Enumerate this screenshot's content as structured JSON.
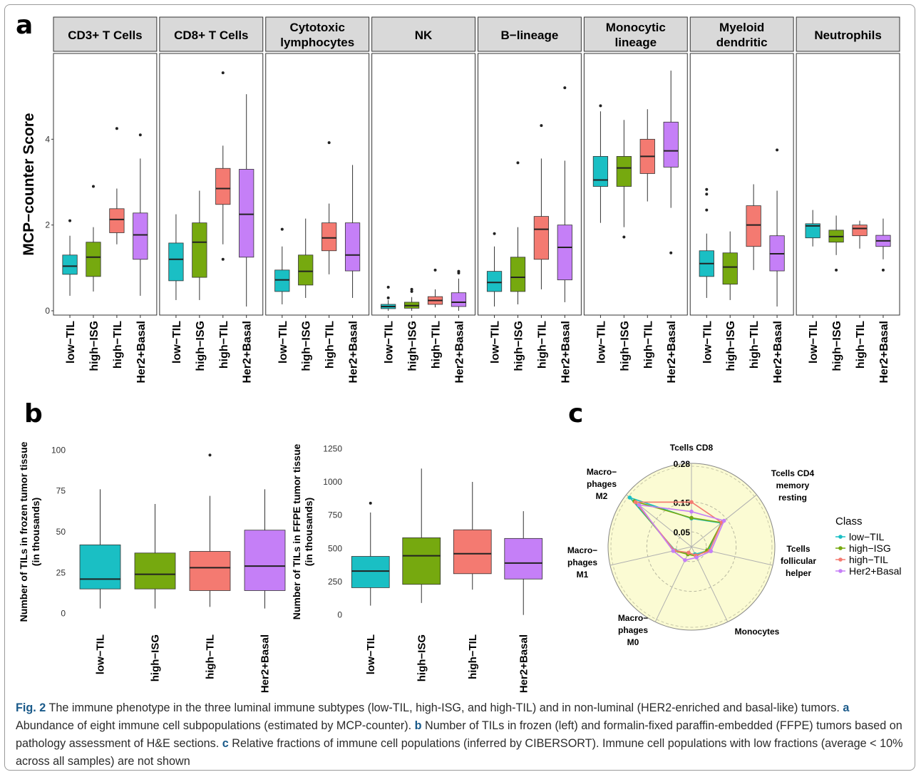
{
  "panel_letters": {
    "a": "a",
    "b": "b",
    "c": "c"
  },
  "groups": [
    "low−TIL",
    "high−ISG",
    "high−TIL",
    "Her2+Basal"
  ],
  "group_colors": {
    "low−TIL": "#1ABFC4",
    "high−ISG": "#76A90F",
    "high−TIL": "#F47A71",
    "Her2+Basal": "#C57FF7"
  },
  "chart_data": [
    {
      "id": "panel-a",
      "type": "box",
      "ylabel": "MCP−counter Score",
      "yticks": [
        0,
        2,
        4
      ],
      "ylim": [
        -0.1,
        6.0
      ],
      "facets": [
        {
          "title": [
            "CD3+ T Cells"
          ],
          "boxes": [
            {
              "q1": 0.85,
              "median": 1.04,
              "q3": 1.3,
              "lo": 0.35,
              "hi": 1.75,
              "out": [
                2.1
              ]
            },
            {
              "q1": 0.8,
              "median": 1.25,
              "q3": 1.6,
              "lo": 0.45,
              "hi": 1.95,
              "out": [
                2.9
              ]
            },
            {
              "q1": 1.82,
              "median": 2.13,
              "q3": 2.38,
              "lo": 1.55,
              "hi": 2.85,
              "out": [
                4.25
              ]
            },
            {
              "q1": 1.2,
              "median": 1.77,
              "q3": 2.28,
              "lo": 0.35,
              "hi": 3.55,
              "out": [
                4.1
              ]
            }
          ]
        },
        {
          "title": [
            "CD8+ T Cells"
          ],
          "boxes": [
            {
              "q1": 0.7,
              "median": 1.2,
              "q3": 1.58,
              "lo": 0.25,
              "hi": 2.25,
              "out": []
            },
            {
              "q1": 0.78,
              "median": 1.6,
              "q3": 2.05,
              "lo": 0.25,
              "hi": 2.8,
              "out": []
            },
            {
              "q1": 2.48,
              "median": 2.85,
              "q3": 3.32,
              "lo": 1.55,
              "hi": 3.85,
              "out": [
                1.2,
                5.55
              ]
            },
            {
              "q1": 1.25,
              "median": 2.25,
              "q3": 3.3,
              "lo": 0.1,
              "hi": 5.05,
              "out": []
            }
          ]
        },
        {
          "title": [
            "Cytotoxic",
            "lymphocytes"
          ],
          "boxes": [
            {
              "q1": 0.45,
              "median": 0.72,
              "q3": 0.95,
              "lo": 0.15,
              "hi": 1.5,
              "out": [
                1.9
              ]
            },
            {
              "q1": 0.6,
              "median": 0.92,
              "q3": 1.3,
              "lo": 0.3,
              "hi": 2.15,
              "out": []
            },
            {
              "q1": 1.4,
              "median": 1.7,
              "q3": 2.05,
              "lo": 0.85,
              "hi": 2.5,
              "out": [
                3.92
              ]
            },
            {
              "q1": 0.93,
              "median": 1.3,
              "q3": 2.05,
              "lo": 0.3,
              "hi": 3.4,
              "out": []
            }
          ]
        },
        {
          "title": [
            "NK"
          ],
          "boxes": [
            {
              "q1": 0.05,
              "median": 0.1,
              "q3": 0.15,
              "lo": 0.0,
              "hi": 0.25,
              "out": [
                0.3,
                0.55
              ]
            },
            {
              "q1": 0.06,
              "median": 0.12,
              "q3": 0.2,
              "lo": 0.0,
              "hi": 0.32,
              "out": [
                0.45,
                0.5
              ]
            },
            {
              "q1": 0.15,
              "median": 0.24,
              "q3": 0.33,
              "lo": 0.08,
              "hi": 0.5,
              "out": [
                0.95
              ]
            },
            {
              "q1": 0.1,
              "median": 0.2,
              "q3": 0.42,
              "lo": 0.0,
              "hi": 0.75,
              "out": [
                0.88,
                0.92
              ]
            }
          ]
        },
        {
          "title": [
            "B−lineage"
          ],
          "boxes": [
            {
              "q1": 0.45,
              "median": 0.66,
              "q3": 0.92,
              "lo": 0.1,
              "hi": 1.5,
              "out": [
                1.8
              ]
            },
            {
              "q1": 0.45,
              "median": 0.78,
              "q3": 1.25,
              "lo": 0.15,
              "hi": 1.95,
              "out": [
                3.45
              ]
            },
            {
              "q1": 1.2,
              "median": 1.9,
              "q3": 2.2,
              "lo": 0.5,
              "hi": 3.55,
              "out": [
                4.32
              ]
            },
            {
              "q1": 0.72,
              "median": 1.48,
              "q3": 2.0,
              "lo": 0.2,
              "hi": 3.5,
              "out": [
                5.2
              ]
            }
          ]
        },
        {
          "title": [
            "Monocytic",
            "lineage"
          ],
          "boxes": [
            {
              "q1": 2.9,
              "median": 3.05,
              "q3": 3.6,
              "lo": 2.05,
              "hi": 4.65,
              "out": [
                4.78
              ]
            },
            {
              "q1": 2.9,
              "median": 3.33,
              "q3": 3.6,
              "lo": 1.95,
              "hi": 4.45,
              "out": [
                1.72
              ]
            },
            {
              "q1": 3.2,
              "median": 3.6,
              "q3": 4.0,
              "lo": 2.55,
              "hi": 4.7,
              "out": []
            },
            {
              "q1": 3.35,
              "median": 3.73,
              "q3": 4.4,
              "lo": 2.4,
              "hi": 5.6,
              "out": [
                1.35
              ]
            }
          ]
        },
        {
          "title": [
            "Myeloid",
            "dendritic"
          ],
          "boxes": [
            {
              "q1": 0.8,
              "median": 1.1,
              "q3": 1.4,
              "lo": 0.3,
              "hi": 1.8,
              "out": [
                2.35,
                2.72,
                2.83
              ]
            },
            {
              "q1": 0.62,
              "median": 1.02,
              "q3": 1.35,
              "lo": 0.25,
              "hi": 1.85,
              "out": []
            },
            {
              "q1": 1.5,
              "median": 2.0,
              "q3": 2.45,
              "lo": 0.95,
              "hi": 2.95,
              "out": []
            },
            {
              "q1": 0.93,
              "median": 1.33,
              "q3": 1.75,
              "lo": 0.1,
              "hi": 2.8,
              "out": [
                3.75
              ]
            }
          ]
        },
        {
          "title": [
            "Neutrophils"
          ],
          "boxes": [
            {
              "q1": 1.7,
              "median": 1.98,
              "q3": 2.03,
              "lo": 1.5,
              "hi": 2.35,
              "out": []
            },
            {
              "q1": 1.6,
              "median": 1.73,
              "q3": 1.88,
              "lo": 1.3,
              "hi": 2.22,
              "out": [
                0.95
              ]
            },
            {
              "q1": 1.75,
              "median": 1.92,
              "q3": 2.0,
              "lo": 1.45,
              "hi": 2.1,
              "out": []
            },
            {
              "q1": 1.5,
              "median": 1.63,
              "q3": 1.76,
              "lo": 1.2,
              "hi": 2.15,
              "out": [
                0.95
              ]
            }
          ]
        }
      ]
    },
    {
      "id": "panel-b-left",
      "type": "box",
      "ylabel": [
        "Number of TILs in frozen tumor tissue",
        "(in thousands)"
      ],
      "yticks": [
        0,
        25,
        50,
        75,
        100
      ],
      "ylim": [
        -5,
        105
      ],
      "boxes": [
        {
          "q1": 15,
          "median": 21,
          "q3": 42,
          "lo": 3,
          "hi": 76,
          "out": []
        },
        {
          "q1": 15,
          "median": 24,
          "q3": 37,
          "lo": 3,
          "hi": 67,
          "out": []
        },
        {
          "q1": 14,
          "median": 28,
          "q3": 38,
          "lo": 4,
          "hi": 72,
          "out": [
            97
          ]
        },
        {
          "q1": 14,
          "median": 29,
          "q3": 51,
          "lo": 3,
          "hi": 76,
          "out": []
        }
      ]
    },
    {
      "id": "panel-b-right",
      "type": "box",
      "ylabel": [
        "Number of TILs in FFPE tumor tissue",
        "(in thousands)"
      ],
      "yticks": [
        0,
        250,
        500,
        750,
        1000,
        1250
      ],
      "ylim": [
        -50,
        1300
      ],
      "boxes": [
        {
          "q1": 205,
          "median": 330,
          "q3": 440,
          "lo": 70,
          "hi": 770,
          "out": [
            840
          ]
        },
        {
          "q1": 230,
          "median": 445,
          "q3": 580,
          "lo": 90,
          "hi": 1100,
          "out": []
        },
        {
          "q1": 310,
          "median": 460,
          "q3": 640,
          "lo": 190,
          "hi": 1000,
          "out": []
        },
        {
          "q1": 270,
          "median": 390,
          "q3": 575,
          "lo": 0,
          "hi": 780,
          "out": []
        }
      ]
    },
    {
      "id": "panel-c",
      "type": "radar",
      "axes": [
        {
          "label": [
            "Tcells CD8"
          ]
        },
        {
          "label": [
            "Tcells CD4",
            "memory",
            "resting"
          ]
        },
        {
          "label": [
            "Tcells",
            "follicular",
            "helper"
          ]
        },
        {
          "label": [
            "Monocytes"
          ]
        },
        {
          "label": [
            "Macro−",
            "phages",
            "M0"
          ]
        },
        {
          "label": [
            "Macro−",
            "phages",
            "M1"
          ]
        },
        {
          "label": [
            "Macro−",
            "phages",
            "M2"
          ]
        }
      ],
      "ring_labels": [
        "0.05",
        "0.15",
        "0.28"
      ],
      "ring_values": [
        0.05,
        0.15,
        0.28
      ],
      "rmax": 0.28,
      "legend_title": "Class",
      "series": [
        {
          "name": "low−TIL",
          "values": [
            0.095,
            0.128,
            0.058,
            0.028,
            0.025,
            0.056,
            0.265
          ]
        },
        {
          "name": "high−ISG",
          "values": [
            0.097,
            0.13,
            0.054,
            0.035,
            0.028,
            0.06,
            0.245
          ]
        },
        {
          "name": "high−TIL",
          "values": [
            0.15,
            0.13,
            0.062,
            0.032,
            0.022,
            0.058,
            0.24
          ]
        },
        {
          "name": "Her2+Basal",
          "values": [
            0.118,
            0.14,
            0.067,
            0.04,
            0.05,
            0.063,
            0.225
          ]
        }
      ]
    }
  ],
  "caption": {
    "fig_label": "Fig. 2",
    "text_1": " The immune phenotype in the three luminal immune subtypes (low-TIL, high-ISG, and high-TIL) and in non-luminal (HER2-enriched and basal-like) tumors. ",
    "a": "a",
    "text_a": " Abundance of eight immune cell subpopulations (estimated by MCP-counter). ",
    "b": "b",
    "text_b": " Number of TILs in frozen (left) and formalin-fixed paraffin-embedded (FFPE) tumors based on pathology assessment of H&E sections. ",
    "c": "c",
    "text_c": " Relative fractions of immune cell populations (inferred by CIBERSORT). Immune cell populations with low fractions (average < 10% across all samples) are not shown"
  }
}
